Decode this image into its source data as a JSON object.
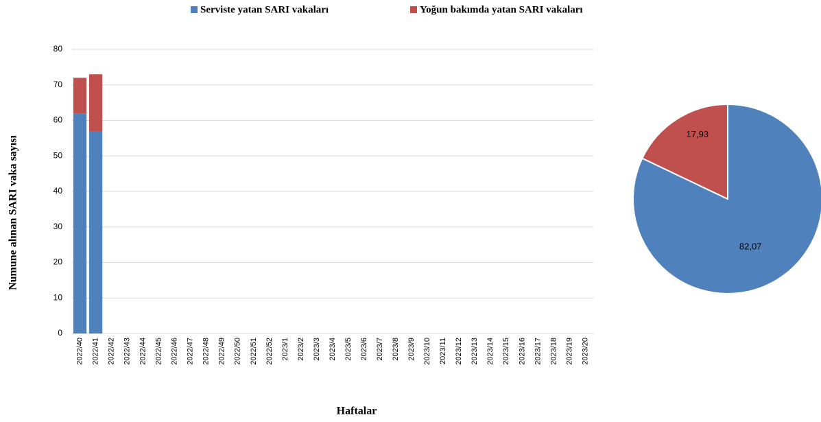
{
  "chart_data": [
    {
      "type": "stacked_bar",
      "x_label": "Haftalar",
      "y_label": "Numune alınan SARI vaka sayısı",
      "categories": [
        "2022/40",
        "2022/41",
        "2022/42",
        "2022/43",
        "2022/44",
        "2022/45",
        "2022/46",
        "2022/47",
        "2022/48",
        "2022/49",
        "2022/50",
        "2022/51",
        "2022/52",
        "2023/1",
        "2023/2",
        "2023/3",
        "2023/4",
        "2023/5",
        "2023/6",
        "2023/7",
        "2023/8",
        "2023/9",
        "2023/10",
        "2023/11",
        "2023/12",
        "2023/13",
        "2023/14",
        "2023/15",
        "2023/16",
        "2023/17",
        "2023/18",
        "2023/19",
        "2023/20"
      ],
      "series": [
        {
          "name": "Serviste yatan SARI vakaları",
          "color": "#4f81bd",
          "values": [
            62,
            57,
            null,
            null,
            null,
            null,
            null,
            null,
            null,
            null,
            null,
            null,
            null,
            null,
            null,
            null,
            null,
            null,
            null,
            null,
            null,
            null,
            null,
            null,
            null,
            null,
            null,
            null,
            null,
            null,
            null,
            null,
            null
          ]
        },
        {
          "name": "Yoğun bakımda yatan SARI vakaları",
          "color": "#c0504d",
          "values": [
            10,
            16,
            null,
            null,
            null,
            null,
            null,
            null,
            null,
            null,
            null,
            null,
            null,
            null,
            null,
            null,
            null,
            null,
            null,
            null,
            null,
            null,
            null,
            null,
            null,
            null,
            null,
            null,
            null,
            null,
            null,
            null,
            null
          ]
        }
      ],
      "ylim": [
        0,
        80
      ],
      "yticks": [
        0,
        10,
        20,
        30,
        40,
        50,
        60,
        70,
        80
      ],
      "grid": true,
      "legend": "top"
    },
    {
      "type": "pie",
      "values": [
        82.07,
        17.93
      ],
      "value_labels": [
        "82,07",
        "17,93"
      ],
      "colors": [
        "#4f81bd",
        "#c0504d"
      ]
    }
  ]
}
